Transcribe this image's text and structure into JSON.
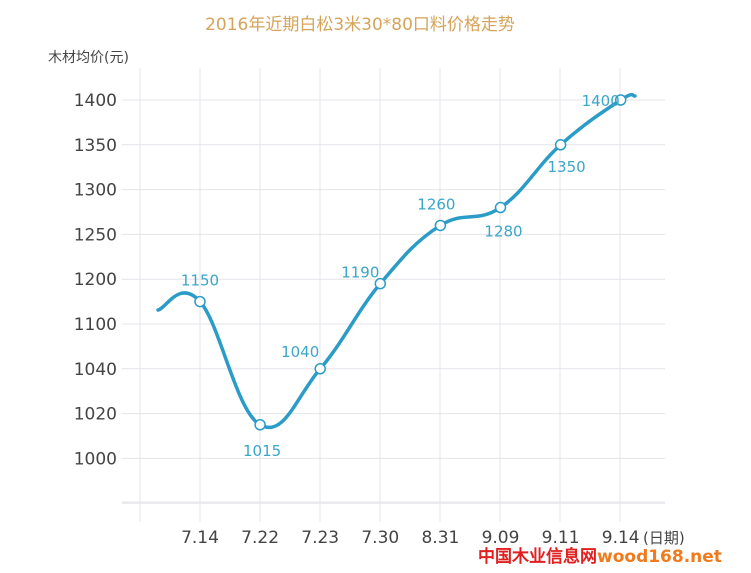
{
  "chart_data": {
    "type": "line",
    "title": "2016年近期白松3米30*80口料价格走势",
    "ylabel": "木材均价(元)",
    "xlabel": "(日期)",
    "y_ticks": [
      "1400",
      "1350",
      "1300",
      "1250",
      "1200",
      "1100",
      "1040",
      "1020",
      "1000"
    ],
    "categories": [
      "7.14",
      "7.22",
      "7.23",
      "7.30",
      "8.31",
      "9.09",
      "9.11",
      "9.14"
    ],
    "values": [
      1150,
      1015,
      1040,
      1190,
      1260,
      1280,
      1350,
      1400
    ],
    "data_labels": [
      "1150",
      "1015",
      "1040",
      "1190",
      "1260",
      "1280",
      "1350",
      "1400"
    ],
    "grid": true,
    "series_color": "#2b9cc8"
  },
  "watermark": {
    "chinese": "中国木业信息网",
    "domain": "wood168.net",
    "chinese_color": "#e02020",
    "domain_color": "#f07a1c"
  }
}
